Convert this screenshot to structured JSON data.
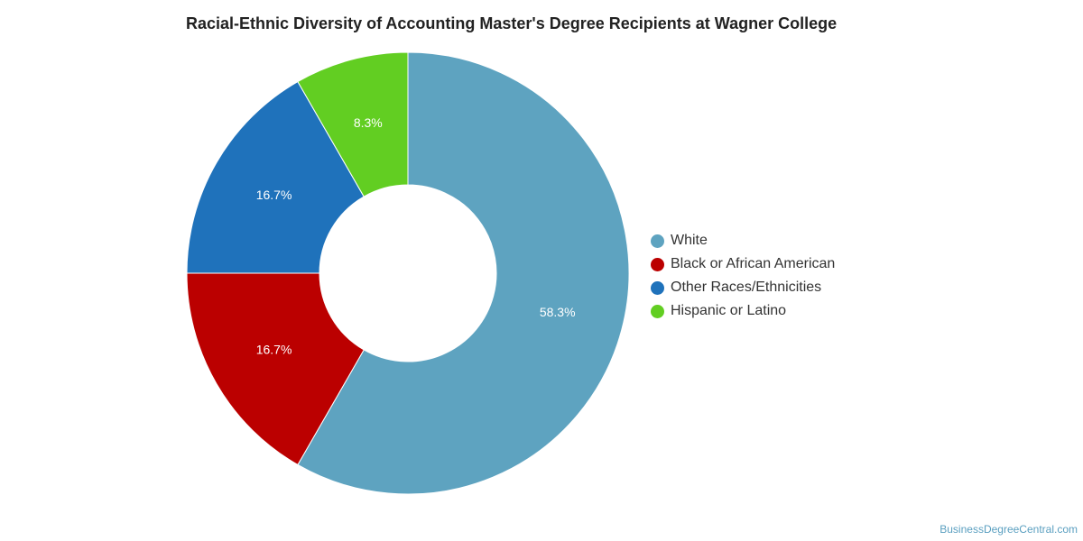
{
  "chart_data": {
    "type": "pie",
    "variant": "donut",
    "title": "Racial-Ethnic Diversity of Accounting Master's Degree Recipients at Wagner College",
    "categories": [
      "White",
      "Black or African American",
      "Other Races/Ethnicities",
      "Hispanic or Latino"
    ],
    "values": [
      58.3,
      16.7,
      16.7,
      8.3
    ],
    "labels": [
      "58.3%",
      "16.7%",
      "16.7%",
      "8.3%"
    ],
    "colors": [
      "#5ea3c0",
      "#bb0000",
      "#1f72bb",
      "#62ce22"
    ],
    "legend_position": "right"
  },
  "source": "BusinessDegreeCentral.com"
}
